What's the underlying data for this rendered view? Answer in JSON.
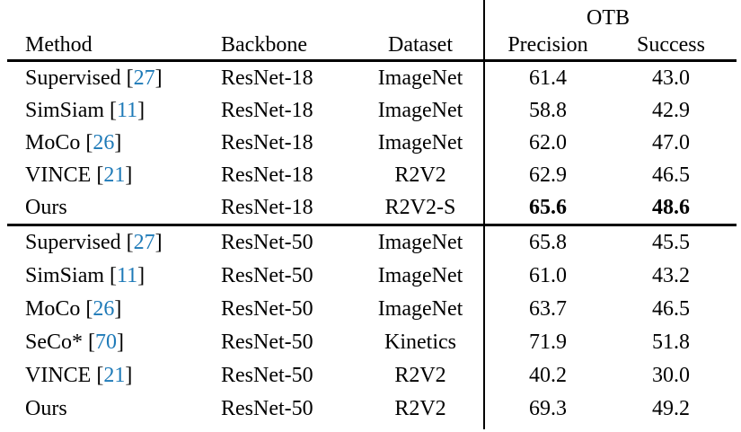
{
  "colors": {
    "citation_blue": "#1e7ab8",
    "text": "#000000",
    "background": "#ffffff"
  },
  "table": {
    "headers": {
      "group": "OTB",
      "method": "Method",
      "backbone": "Backbone",
      "dataset": "Dataset",
      "precision": "Precision",
      "success": "Success"
    },
    "sections": [
      {
        "rows": [
          {
            "method": "Supervised",
            "cite_open": "[",
            "cite": "27",
            "cite_close": "]",
            "backbone": "ResNet-18",
            "dataset": "ImageNet",
            "precision": "61.4",
            "success": "43.0"
          },
          {
            "method": "SimSiam",
            "cite_open": "[",
            "cite": "11",
            "cite_close": "]",
            "backbone": "ResNet-18",
            "dataset": "ImageNet",
            "precision": "58.8",
            "success": "42.9"
          },
          {
            "method": "MoCo",
            "cite_open": "[",
            "cite": "26",
            "cite_close": "]",
            "backbone": "ResNet-18",
            "dataset": "ImageNet",
            "precision": "62.0",
            "success": "47.0"
          },
          {
            "method": "VINCE",
            "cite_open": "[",
            "cite": "21",
            "cite_close": "]",
            "backbone": "ResNet-18",
            "dataset": "R2V2",
            "precision": "62.9",
            "success": "46.5"
          },
          {
            "method": "Ours",
            "backbone": "ResNet-18",
            "dataset": "R2V2-S",
            "precision": "65.6",
            "success": "48.6",
            "bold": true
          }
        ]
      },
      {
        "rows": [
          {
            "method": "Supervised",
            "cite_open": "[",
            "cite": "27",
            "cite_close": "]",
            "backbone": "ResNet-50",
            "dataset": "ImageNet",
            "precision": "65.8",
            "success": "45.5"
          },
          {
            "method": "SimSiam",
            "cite_open": "[",
            "cite": "11",
            "cite_close": "]",
            "backbone": "ResNet-50",
            "dataset": "ImageNet",
            "precision": "61.0",
            "success": "43.2"
          },
          {
            "method": "MoCo",
            "cite_open": "[",
            "cite": "26",
            "cite_close": "]",
            "backbone": "ResNet-50",
            "dataset": "ImageNet",
            "precision": "63.7",
            "success": "46.5"
          },
          {
            "method": "SeCo*",
            "cite_open": "[",
            "cite": "70",
            "cite_close": "]",
            "backbone": "ResNet-50",
            "dataset": "Kinetics",
            "precision": "71.9",
            "success": "51.8"
          },
          {
            "method": "VINCE",
            "cite_open": "[",
            "cite": "21",
            "cite_close": "]",
            "backbone": "ResNet-50",
            "dataset": "R2V2",
            "precision": "40.2",
            "success": "30.0"
          },
          {
            "method": "Ours",
            "backbone": "ResNet-50",
            "dataset": "R2V2",
            "precision": "69.3",
            "success": "49.2"
          }
        ]
      }
    ]
  }
}
